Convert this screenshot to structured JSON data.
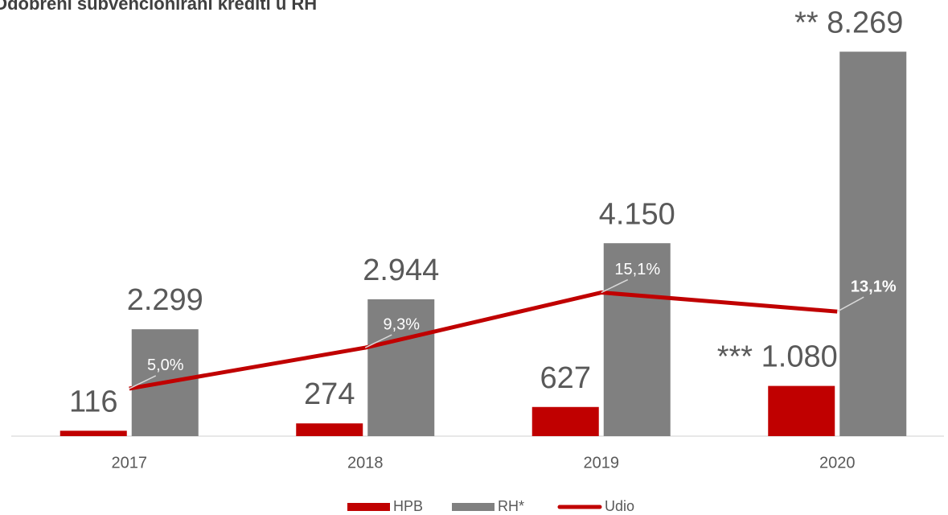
{
  "chart_data": {
    "type": "bar",
    "title": "Odobreni subvencionirani krediti u RH",
    "categories": [
      "2017",
      "2018",
      "2019",
      "2020"
    ],
    "series": [
      {
        "name": "HPB",
        "color": "#c00000",
        "values": [
          116,
          274,
          627,
          1080
        ],
        "value_labels": [
          "116",
          "274",
          "627",
          "*** 1.080"
        ]
      },
      {
        "name": "RH*",
        "color": "#808080",
        "values": [
          2299,
          2944,
          4150,
          8269
        ],
        "value_labels": [
          "2.299",
          "2.944",
          "4.150",
          "** 8.269"
        ]
      },
      {
        "name": "Udio",
        "type": "line",
        "axis": "y2",
        "color": "#c00000",
        "values": [
          5.0,
          9.3,
          15.1,
          13.1
        ],
        "value_labels": [
          "5,0%",
          "9,3%",
          "15,1%",
          "13,1%"
        ]
      }
    ],
    "ylim": [
      0,
      9000
    ],
    "y2lim": [
      0,
      44
    ],
    "legend": "bottom"
  }
}
